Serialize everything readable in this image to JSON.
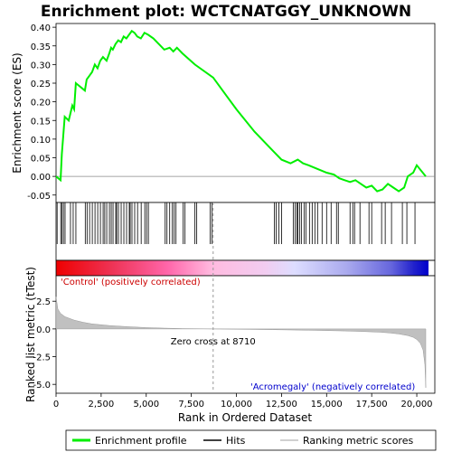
{
  "chart_data": {
    "type": "line",
    "title": "Enrichment plot: WCTCNATGGY_UNKNOWN",
    "top_panel": {
      "ylabel": "Enrichment score (ES)",
      "ylim": [
        -0.07,
        0.41
      ],
      "yticks": [
        "-0.05",
        "0.00",
        "0.05",
        "0.10",
        "0.15",
        "0.20",
        "0.25",
        "0.30",
        "0.35",
        "0.40"
      ],
      "ytick_values": [
        -0.05,
        0,
        0.05,
        0.1,
        0.15,
        0.2,
        0.25,
        0.3,
        0.35,
        0.4
      ],
      "series": [
        {
          "name": "Enrichment profile",
          "color": "#00ee00",
          "x": [
            0,
            250,
            320,
            400,
            480,
            700,
            900,
            1000,
            1100,
            1600,
            1700,
            1850,
            2000,
            2150,
            2300,
            2450,
            2600,
            2800,
            2950,
            3050,
            3150,
            3300,
            3450,
            3600,
            3750,
            3900,
            4050,
            4200,
            4350,
            4500,
            4700,
            4900,
            5100,
            5400,
            6000,
            6300,
            6500,
            6700,
            7000,
            7700,
            8710,
            10000,
            11000,
            12000,
            12500,
            13000,
            13400,
            13700,
            14000,
            14500,
            15000,
            15400,
            15700,
            16000,
            16300,
            16600,
            16900,
            17200,
            17500,
            17800,
            18100,
            18400,
            18700,
            19000,
            19300,
            19500,
            19800,
            20000,
            20500
          ],
          "y": [
            0.0,
            -0.01,
            0.06,
            0.11,
            0.16,
            0.15,
            0.19,
            0.18,
            0.25,
            0.23,
            0.26,
            0.27,
            0.28,
            0.3,
            0.29,
            0.31,
            0.32,
            0.31,
            0.33,
            0.345,
            0.34,
            0.355,
            0.365,
            0.36,
            0.375,
            0.37,
            0.38,
            0.39,
            0.385,
            0.375,
            0.37,
            0.385,
            0.38,
            0.37,
            0.34,
            0.345,
            0.335,
            0.345,
            0.33,
            0.3,
            0.265,
            0.18,
            0.12,
            0.07,
            0.045,
            0.035,
            0.045,
            0.035,
            0.03,
            0.02,
            0.01,
            0.005,
            -0.005,
            -0.01,
            -0.015,
            -0.01,
            -0.02,
            -0.03,
            -0.025,
            -0.04,
            -0.035,
            -0.02,
            -0.03,
            -0.04,
            -0.03,
            0.0,
            0.01,
            0.03,
            0.0
          ]
        }
      ]
    },
    "hits": [
      60,
      260,
      330,
      410,
      500,
      800,
      950,
      1100,
      1620,
      1720,
      1860,
      2010,
      2160,
      2310,
      2460,
      2610,
      2700,
      2810,
      2960,
      3060,
      3160,
      3310,
      3360,
      3460,
      3610,
      3760,
      3910,
      4060,
      4110,
      4210,
      4360,
      4520,
      4720,
      4920,
      5020,
      5120,
      6050,
      6150,
      6300,
      6450,
      6550,
      6650,
      7050,
      7150,
      7700,
      7800,
      8550,
      8650,
      12100,
      12200,
      12350,
      12500,
      13150,
      13250,
      13350,
      13400,
      13500,
      13600,
      13750,
      13850,
      14050,
      14200,
      14350,
      14500,
      14750,
      15000,
      15250,
      15550,
      15650,
      16300,
      16450,
      16550,
      16850,
      17350,
      17500,
      18050,
      18250,
      18600,
      19200,
      19450,
      19900
    ],
    "ranked_panel": {
      "ylabel": "Ranked list metric (tTest)",
      "ylim": [
        -5.8,
        4.8
      ],
      "yticks": [
        "-5.0",
        "-2.5",
        "0.0",
        "2.5"
      ],
      "ytick_values": [
        -5.0,
        -2.5,
        0.0,
        2.5
      ],
      "xlabel": "Rank in Ordered Dataset",
      "xlim": [
        0,
        21000
      ],
      "xticks": [
        "0",
        "2,500",
        "5,000",
        "7,500",
        "10,000",
        "12,500",
        "15,000",
        "17,500",
        "20,000"
      ],
      "xtick_values": [
        0,
        2500,
        5000,
        7500,
        10000,
        12500,
        15000,
        17500,
        20000
      ],
      "metric_x": [
        0,
        100,
        250,
        500,
        1000,
        1500,
        2000,
        3000,
        4000,
        5000,
        6000,
        7000,
        8000,
        8710,
        10000,
        12000,
        14000,
        16000,
        17000,
        18000,
        18500,
        19000,
        19500,
        19800,
        20000,
        20200,
        20350,
        20450,
        20500
      ],
      "metric_y": [
        2.9,
        1.8,
        1.4,
        1.1,
        0.8,
        0.6,
        0.45,
        0.3,
        0.2,
        0.12,
        0.07,
        0.03,
        0.01,
        0.0,
        -0.03,
        -0.07,
        -0.12,
        -0.18,
        -0.23,
        -0.3,
        -0.36,
        -0.45,
        -0.6,
        -0.75,
        -0.95,
        -1.3,
        -1.9,
        -3.2,
        -5.3
      ]
    },
    "zero_cross_label": "Zero cross at 8710",
    "zero_cross_x": 8710,
    "positive_label": "'Control' (positively correlated)",
    "negative_label": "'Acromegaly' (negatively correlated)",
    "legend": {
      "placement": "bottom",
      "entries": [
        {
          "label": "Enrichment profile",
          "color": "#00ee00",
          "style": "line"
        },
        {
          "label": "Hits",
          "color": "#000000",
          "style": "line"
        },
        {
          "label": "Ranking metric scores",
          "color": "#c0c0c0",
          "style": "line"
        }
      ]
    }
  }
}
